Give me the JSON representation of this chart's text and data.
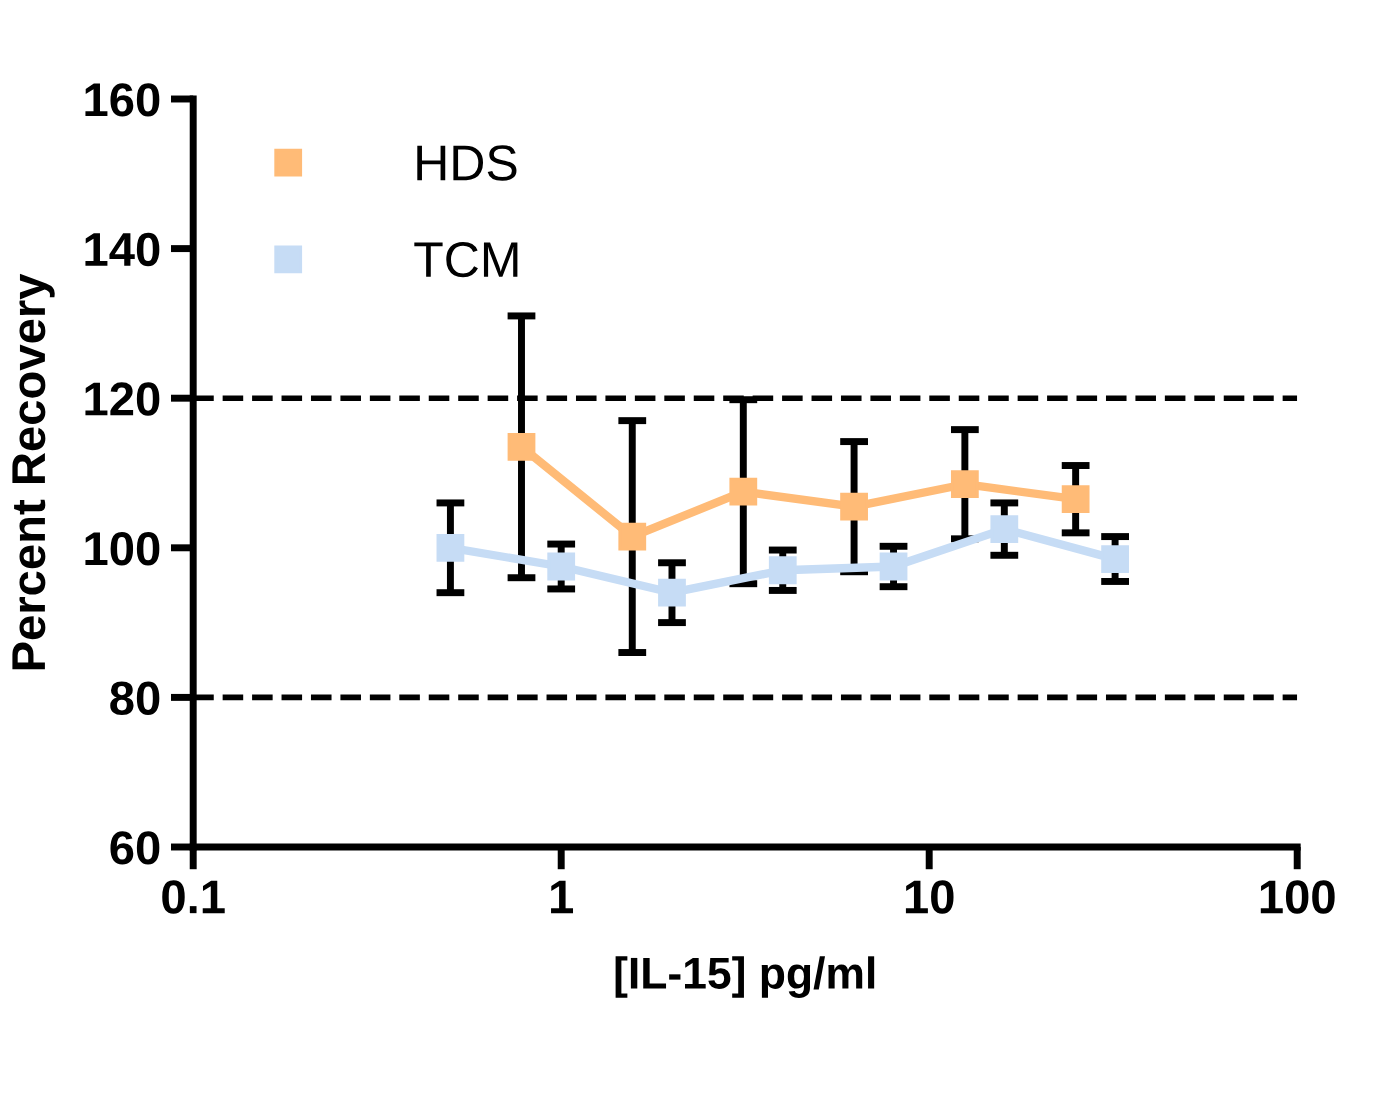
{
  "chart_data": {
    "type": "line",
    "xlabel": "[IL-15] pg/ml",
    "ylabel": "Percent Recovery",
    "log": "x",
    "marker": "square",
    "line_style": "solid",
    "legend": "top left",
    "grid": false,
    "xlim": [
      0.1,
      100
    ],
    "xticks": [
      0.1,
      1,
      10,
      100
    ],
    "ylim": [
      60,
      160
    ],
    "yticks": [
      60,
      80,
      100,
      120,
      140,
      160
    ],
    "series": [
      {
        "name": "HDS",
        "color": "#ffbb77",
        "x": [
          0.78,
          1.56,
          3.125,
          6.25,
          12.5,
          25
        ],
        "values": [
          113.5,
          101.5,
          107.5,
          105.5,
          108.5,
          106.5
        ],
        "errors": [
          17.5,
          15.5,
          12.3,
          8.7,
          7.3,
          4.5
        ]
      },
      {
        "name": "TCM",
        "color": "#c6dcf5",
        "x": [
          0.5,
          1,
          2,
          4,
          8,
          16,
          32
        ],
        "values": [
          100,
          97.5,
          94,
          97,
          97.5,
          102.5,
          98.5
        ],
        "errors": [
          6,
          3,
          4,
          2.7,
          2.7,
          3.5,
          3
        ]
      }
    ],
    "ref_lines": [
      {
        "axis": "y",
        "value": 80,
        "color": "#000000",
        "line_style": "dashed"
      },
      {
        "axis": "y",
        "value": 120,
        "color": "#000000",
        "line_style": "dashed"
      }
    ]
  }
}
